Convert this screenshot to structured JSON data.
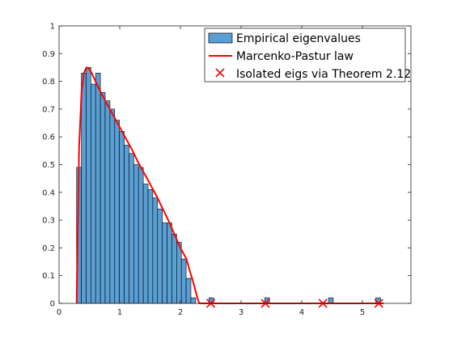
{
  "chart_data": {
    "type": "bar",
    "title": "",
    "xlabel": "",
    "ylabel": "",
    "xlim": [
      0,
      5.8
    ],
    "ylim": [
      0,
      1
    ],
    "grid": false,
    "legend_position": "top-right",
    "x_ticks": [
      0,
      1,
      2,
      3,
      4,
      5
    ],
    "x_tick_labels": [
      "0",
      "1",
      "2",
      "3",
      "4",
      "5"
    ],
    "y_ticks": [
      0,
      0.1,
      0.2,
      0.3,
      0.4,
      0.5,
      0.6,
      0.7,
      0.8,
      0.9,
      1
    ],
    "y_tick_labels": [
      "0",
      "0.1",
      "0.2",
      "0.3",
      "0.4",
      "0.5",
      "0.6",
      "0.7",
      "0.8",
      "0.9",
      "1"
    ],
    "colors": {
      "bars": "#5a9fd4",
      "bar_edge": "#000000",
      "line": "#ff0000",
      "markers": "#ff0000"
    },
    "series": [
      {
        "name": "Empirical eigenvalues",
        "kind": "histogram",
        "bin_width": 0.0785,
        "x_start": 0.289,
        "values": [
          0.49,
          0.83,
          0.85,
          0.79,
          0.83,
          0.76,
          0.73,
          0.7,
          0.66,
          0.62,
          0.57,
          0.54,
          0.5,
          0.49,
          0.43,
          0.41,
          0.38,
          0.34,
          0.29,
          0.29,
          0.25,
          0.22,
          0.16,
          0.09,
          0.02,
          0,
          0,
          0,
          0,
          0,
          0,
          0,
          0,
          0,
          0,
          0,
          0,
          0,
          0,
          0,
          0,
          0,
          0,
          0,
          0,
          0,
          0,
          0,
          0,
          0,
          0,
          0,
          0,
          0,
          0,
          0,
          0,
          0,
          0,
          0,
          0,
          0,
          0,
          0,
          0,
          0,
          0
        ],
        "isolated_bars": [
          {
            "x": 2.51,
            "value": 0.02
          },
          {
            "x": 3.43,
            "value": 0.02
          },
          {
            "x": 4.48,
            "value": 0.02
          },
          {
            "x": 5.26,
            "value": 0.02
          }
        ]
      },
      {
        "name": "Marcenko-Pastur law",
        "kind": "line",
        "x": [
          0.29,
          0.33,
          0.37,
          0.41,
          0.45,
          0.5,
          0.55,
          0.6,
          0.7,
          0.8,
          0.9,
          1.0,
          1.1,
          1.2,
          1.3,
          1.4,
          1.5,
          1.6,
          1.7,
          1.8,
          1.9,
          2.0,
          2.1,
          2.15,
          2.2,
          2.25,
          2.28,
          2.31,
          2.4,
          2.8,
          3.4,
          4.0,
          5.0,
          5.35
        ],
        "y": [
          0.0,
          0.56,
          0.76,
          0.83,
          0.85,
          0.845,
          0.825,
          0.8,
          0.755,
          0.715,
          0.675,
          0.635,
          0.595,
          0.555,
          0.51,
          0.47,
          0.43,
          0.39,
          0.345,
          0.3,
          0.25,
          0.2,
          0.16,
          0.12,
          0.085,
          0.045,
          0.02,
          0.0,
          0.0,
          0.0,
          0.0,
          0.0,
          0.0,
          0.0
        ]
      },
      {
        "name": "Isolated eigs via Theorem 2.12",
        "kind": "scatter",
        "marker": "x",
        "x": [
          2.5,
          3.4,
          4.35,
          5.27
        ],
        "y": [
          0,
          0,
          0,
          0
        ]
      }
    ]
  }
}
